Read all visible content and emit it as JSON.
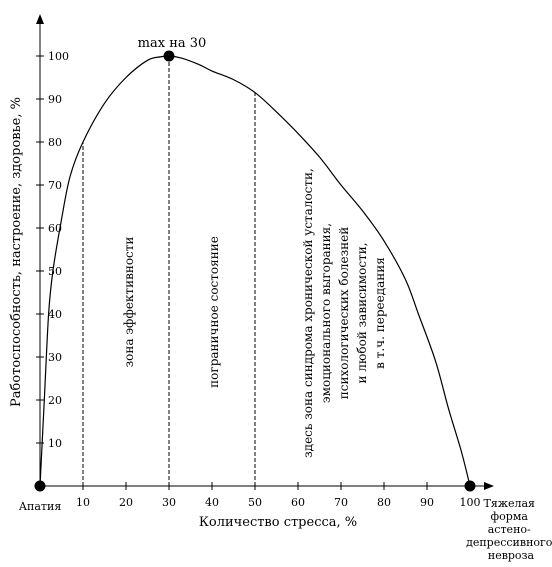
{
  "chart_data": {
    "type": "line",
    "xlabel": "Количество стресса, %",
    "ylabel": "Работоспособность, настроение, здоровье, %",
    "xlim": [
      0,
      100
    ],
    "ylim": [
      0,
      100
    ],
    "x_ticks": [
      10,
      20,
      30,
      40,
      50,
      60,
      70,
      80,
      90,
      100
    ],
    "y_ticks": [
      10,
      20,
      30,
      40,
      50,
      60,
      70,
      80,
      90,
      100
    ],
    "grid": false,
    "series": [
      {
        "x": [
          0,
          1,
          2,
          3,
          5,
          7,
          10,
          15,
          20,
          25,
          28,
          30,
          33,
          37,
          40,
          45,
          50,
          55,
          60,
          65,
          70,
          75,
          80,
          85,
          88,
          92,
          95,
          98,
          100
        ],
        "y": [
          0,
          20,
          40,
          50,
          62,
          72,
          80,
          89,
          95,
          99,
          99.8,
          100,
          99.5,
          98,
          96.5,
          94.5,
          91.5,
          87,
          82,
          76.5,
          70,
          64,
          57,
          48,
          40,
          29,
          18,
          8,
          0
        ]
      }
    ],
    "annotations": {
      "max_label": "max на 30",
      "start_label": "Апатия",
      "end_label": [
        "Тяжелая",
        "форма",
        "астено-",
        "депрессивного",
        "невроза"
      ]
    },
    "zones": [
      {
        "lines": [
          "зона эффективности"
        ]
      },
      {
        "lines": [
          "пограничное состояние"
        ]
      },
      {
        "lines": [
          "здесь зона синдрома хронической усталости,",
          "эмоционального выгорания,",
          "психологических болезней",
          "и любой зависимости,",
          "в т.ч. переедания"
        ]
      }
    ],
    "dashed_lines_x": [
      10,
      30,
      50
    ],
    "highlight_points": [
      {
        "x": 0,
        "y": 0
      },
      {
        "x": 30,
        "y": 100
      },
      {
        "x": 100,
        "y": 0
      }
    ]
  }
}
